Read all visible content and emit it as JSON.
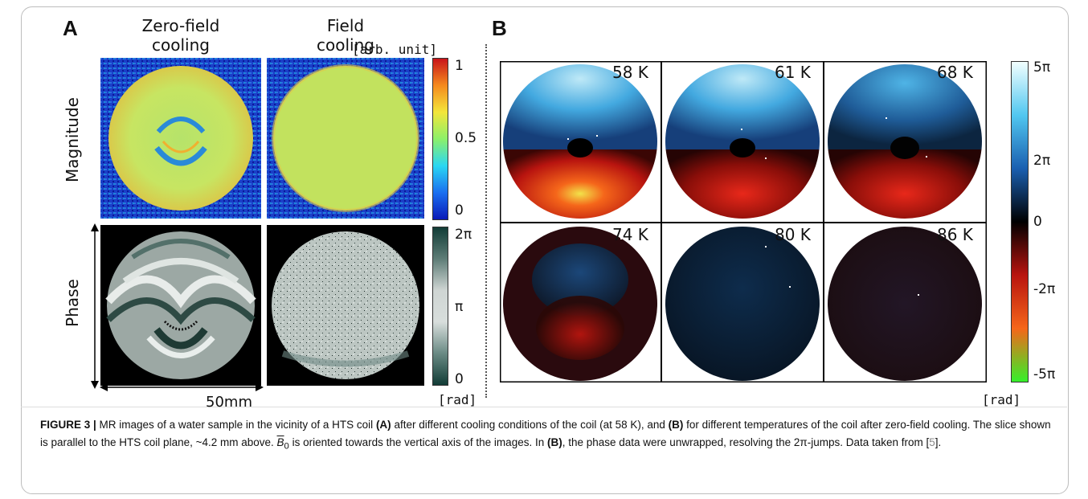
{
  "figure": {
    "panel_a": {
      "letter": "A",
      "columns": [
        "Zero-field\ncooling",
        "Field\ncooling"
      ],
      "rows": [
        "Magnitude",
        "Phase"
      ],
      "magnitude_colorbar": {
        "unit": "[arb. unit]",
        "ticks": [
          "1",
          "0.5",
          "0"
        ],
        "colors": [
          "#0a1ab8",
          "#1a6ff0",
          "#2ad7f2",
          "#8cf06a",
          "#f3e63a",
          "#f58a1e",
          "#c8141a"
        ]
      },
      "phase_colorbar": {
        "unit": "[rad]",
        "ticks": [
          "2π",
          "π",
          "0"
        ],
        "colors": [
          "#123c36",
          "#6a8a84",
          "#d8dedc",
          "#cfd5d3",
          "#5e7d77",
          "#123c36"
        ]
      },
      "scale_label": "50mm"
    },
    "panel_b": {
      "letter": "B",
      "temperatures": [
        "58 K",
        "61 K",
        "68 K",
        "74 K",
        "80 K",
        "86 K"
      ],
      "colorbar": {
        "unit": "[rad]",
        "ticks": [
          "5π",
          "2π",
          "0",
          "-2π",
          "-5π"
        ],
        "colors": [
          "#f2ffff",
          "#51c7f0",
          "#1a5fb0",
          "#000000",
          "#b8140f",
          "#f5661a",
          "#35f02a"
        ]
      }
    },
    "caption": {
      "lead": "FIGURE 3 |",
      "text_1": " MR images of a water sample in the vicinity of a HTS coil ",
      "a_mark": "(A)",
      "text_2": " after different cooling conditions of the coil (at 58 K), and ",
      "b_mark": "(B)",
      "text_3": " for different temperatures of the coil after zero-field cooling. The slice shown is parallel to the HTS coil plane, ~4.2 mm above. ",
      "b0": "B",
      "b0_sub": "0",
      "text_4": " is oriented towards the vertical axis of the images. In ",
      "b_mark_2": "(B)",
      "text_5": ", the phase data were unwrapped, resolving the 2π-jumps. Data taken from [",
      "ref": "5",
      "text_6": "]."
    }
  }
}
